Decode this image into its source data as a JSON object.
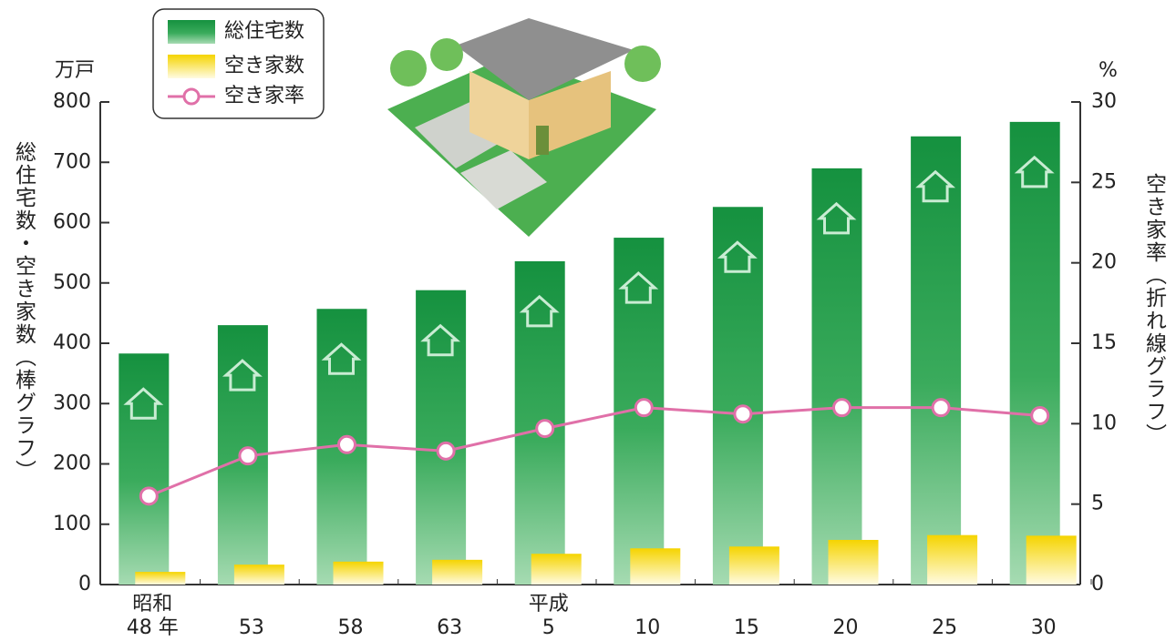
{
  "chart_data": {
    "type": "bar_line",
    "categories": [
      [
        "昭和",
        "48 年"
      ],
      [
        "53"
      ],
      [
        "58"
      ],
      [
        "63"
      ],
      [
        "平成",
        "5"
      ],
      [
        "10"
      ],
      [
        "15"
      ],
      [
        "20"
      ],
      [
        "25"
      ],
      [
        "30"
      ]
    ],
    "y_label": "総住宅数・空き家数（棒グラフ）",
    "y_unit": "万戸",
    "y2_label": "空き家率（折れ線グラフ）",
    "y2_unit": "%",
    "ylim": [
      0,
      800
    ],
    "yticks": [
      0,
      100,
      200,
      300,
      400,
      500,
      600,
      700,
      800
    ],
    "y2lim": [
      0,
      30
    ],
    "y2ticks": [
      0,
      5,
      10,
      15,
      20,
      25,
      30
    ],
    "series": [
      {
        "name": "総住宅数",
        "color": "#1e9a48",
        "type": "bar",
        "values": [
          383,
          430,
          457,
          488,
          536,
          575,
          626,
          690,
          743,
          767
        ]
      },
      {
        "name": "空き家数",
        "color": "#f7dc1a",
        "type": "bar",
        "values": [
          21,
          33,
          38,
          41,
          51,
          60,
          63,
          74,
          82,
          81
        ]
      },
      {
        "name": "空き家率",
        "color": "#e070a8",
        "type": "line",
        "axis": "y2",
        "values": [
          5.5,
          8.0,
          8.7,
          8.3,
          9.7,
          11.0,
          10.6,
          11.0,
          11.0,
          10.5
        ]
      }
    ]
  }
}
